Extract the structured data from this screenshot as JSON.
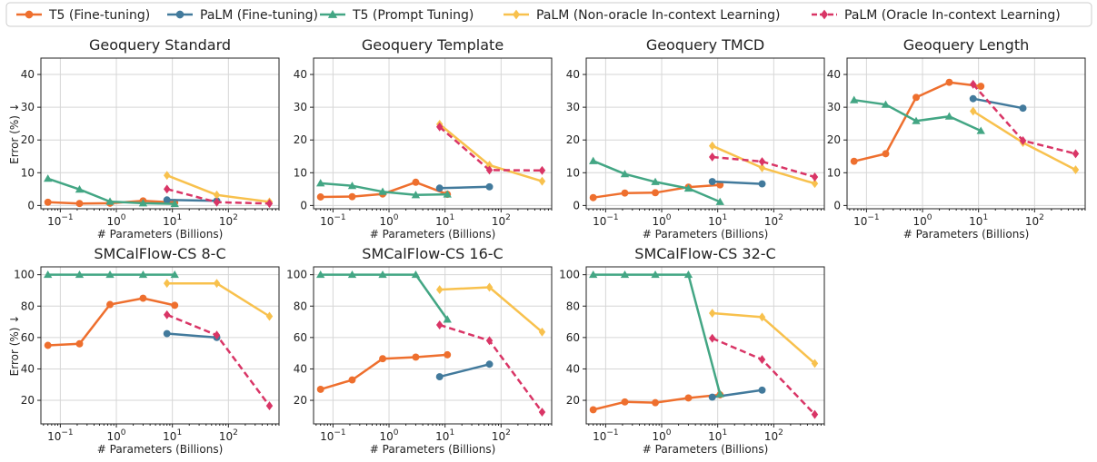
{
  "figure": {
    "legend": [
      {
        "name": "T5 (Fine-tuning)",
        "color": "#ee6f2e",
        "marker": "circle",
        "dashed": false
      },
      {
        "name": "PaLM (Fine-tuning)",
        "color": "#427a9c",
        "marker": "circle",
        "dashed": false
      },
      {
        "name": "T5 (Prompt Tuning)",
        "color": "#43a684",
        "marker": "triangle",
        "dashed": false
      },
      {
        "name": "PaLM (Non-oracle In-context Learning)",
        "color": "#f8c14d",
        "marker": "diamond",
        "dashed": false
      },
      {
        "name": "PaLM (Oracle In-context Learning)",
        "color": "#d93566",
        "marker": "diamond",
        "dashed": true
      }
    ],
    "xlabel": "# Parameters (Billions)",
    "ylabel": "Error (%) ↓",
    "x_ticks": [
      0.1,
      1,
      10,
      100
    ],
    "x_tick_exponents": [
      "−1",
      "0",
      "1",
      "2"
    ],
    "x_tick_base": "10"
  },
  "chart_data": [
    {
      "type": "line",
      "title": "Geoquery Standard",
      "xscale": "log",
      "xlim": [
        0.045,
        800
      ],
      "ylim": [
        -1,
        45
      ],
      "yticks": [
        0,
        10,
        20,
        30,
        40
      ],
      "grid": true,
      "series": [
        {
          "name": "T5 (Fine-tuning)",
          "x": [
            0.06,
            0.22,
            0.77,
            3,
            11
          ],
          "y": [
            1.0,
            0.6,
            0.7,
            1.4,
            0.9
          ]
        },
        {
          "name": "PaLM (Fine-tuning)",
          "x": [
            8,
            62
          ],
          "y": [
            1.7,
            1.4
          ]
        },
        {
          "name": "T5 (Prompt Tuning)",
          "x": [
            0.06,
            0.22,
            0.77,
            3,
            11
          ],
          "y": [
            8.2,
            4.9,
            1.2,
            0.7,
            0.5
          ]
        },
        {
          "name": "PaLM (Non-oracle In-context Learning)",
          "x": [
            8,
            62,
            540
          ],
          "y": [
            9.2,
            3.2,
            1.1
          ]
        },
        {
          "name": "PaLM (Oracle In-context Learning)",
          "x": [
            8,
            62,
            540
          ],
          "y": [
            5.0,
            1.0,
            0.6
          ]
        }
      ]
    },
    {
      "type": "line",
      "title": "Geoquery Template",
      "xscale": "log",
      "xlim": [
        0.045,
        800
      ],
      "ylim": [
        -1,
        45
      ],
      "yticks": [
        0,
        10,
        20,
        30,
        40
      ],
      "grid": true,
      "series": [
        {
          "name": "T5 (Fine-tuning)",
          "x": [
            0.06,
            0.22,
            0.77,
            3,
            11
          ],
          "y": [
            2.6,
            2.7,
            3.5,
            7.1,
            3.4
          ]
        },
        {
          "name": "PaLM (Fine-tuning)",
          "x": [
            8,
            62
          ],
          "y": [
            5.3,
            5.7
          ]
        },
        {
          "name": "T5 (Prompt Tuning)",
          "x": [
            0.06,
            0.22,
            0.77,
            3,
            11
          ],
          "y": [
            6.8,
            6.0,
            4.2,
            3.2,
            3.4
          ]
        },
        {
          "name": "PaLM (Non-oracle In-context Learning)",
          "x": [
            8,
            62,
            540
          ],
          "y": [
            24.8,
            12.3,
            7.4
          ]
        },
        {
          "name": "PaLM (Oracle In-context Learning)",
          "x": [
            8,
            62,
            540
          ],
          "y": [
            24.0,
            10.8,
            10.7
          ]
        }
      ]
    },
    {
      "type": "line",
      "title": "Geoquery TMCD",
      "xscale": "log",
      "xlim": [
        0.045,
        800
      ],
      "ylim": [
        -1,
        45
      ],
      "yticks": [
        0,
        10,
        20,
        30,
        40
      ],
      "grid": true,
      "series": [
        {
          "name": "T5 (Fine-tuning)",
          "x": [
            0.06,
            0.22,
            0.77,
            3,
            11
          ],
          "y": [
            2.4,
            3.8,
            3.9,
            5.6,
            6.3
          ]
        },
        {
          "name": "PaLM (Fine-tuning)",
          "x": [
            8,
            62
          ],
          "y": [
            7.3,
            6.6
          ]
        },
        {
          "name": "T5 (Prompt Tuning)",
          "x": [
            0.06,
            0.22,
            0.77,
            3,
            11
          ],
          "y": [
            13.6,
            9.6,
            7.2,
            5.2,
            1.1
          ]
        },
        {
          "name": "PaLM (Non-oracle In-context Learning)",
          "x": [
            8,
            62,
            540
          ],
          "y": [
            18.2,
            11.5,
            6.7
          ]
        },
        {
          "name": "PaLM (Oracle In-context Learning)",
          "x": [
            8,
            62,
            540
          ],
          "y": [
            14.8,
            13.4,
            8.7
          ]
        }
      ]
    },
    {
      "type": "line",
      "title": "Geoquery Length",
      "xscale": "log",
      "xlim": [
        0.045,
        800
      ],
      "ylim": [
        -1,
        45
      ],
      "yticks": [
        0,
        10,
        20,
        30,
        40
      ],
      "grid": true,
      "series": [
        {
          "name": "T5 (Fine-tuning)",
          "x": [
            0.06,
            0.22,
            0.77,
            3,
            11
          ],
          "y": [
            13.5,
            15.8,
            33.0,
            37.6,
            36.4
          ]
        },
        {
          "name": "PaLM (Fine-tuning)",
          "x": [
            8,
            62
          ],
          "y": [
            32.6,
            29.7
          ]
        },
        {
          "name": "T5 (Prompt Tuning)",
          "x": [
            0.06,
            0.22,
            0.77,
            3,
            11
          ],
          "y": [
            32.2,
            30.8,
            25.8,
            27.2,
            22.8
          ]
        },
        {
          "name": "PaLM (Non-oracle In-context Learning)",
          "x": [
            8,
            62,
            540
          ],
          "y": [
            28.8,
            19.2,
            10.9
          ]
        },
        {
          "name": "PaLM (Oracle In-context Learning)",
          "x": [
            8,
            62,
            540
          ],
          "y": [
            37.0,
            19.8,
            15.8
          ]
        }
      ]
    },
    {
      "type": "line",
      "title": "SMCalFlow-CS 8-C",
      "xscale": "log",
      "xlim": [
        0.045,
        800
      ],
      "ylim": [
        5,
        105
      ],
      "yticks": [
        20,
        40,
        60,
        80,
        100
      ],
      "grid": true,
      "series": [
        {
          "name": "T5 (Fine-tuning)",
          "x": [
            0.06,
            0.22,
            0.77,
            3,
            11
          ],
          "y": [
            55.0,
            56.0,
            81.0,
            85.0,
            80.5
          ]
        },
        {
          "name": "PaLM (Fine-tuning)",
          "x": [
            8,
            62
          ],
          "y": [
            62.5,
            60.0
          ]
        },
        {
          "name": "T5 (Prompt Tuning)",
          "x": [
            0.06,
            0.22,
            0.77,
            3,
            11
          ],
          "y": [
            100,
            100,
            100,
            100,
            100
          ]
        },
        {
          "name": "PaLM (Non-oracle In-context Learning)",
          "x": [
            8,
            62,
            540
          ],
          "y": [
            94.5,
            94.5,
            73.5
          ]
        },
        {
          "name": "PaLM (Oracle In-context Learning)",
          "x": [
            8,
            62,
            540
          ],
          "y": [
            74.5,
            61.5,
            16.5
          ]
        }
      ]
    },
    {
      "type": "line",
      "title": "SMCalFlow-CS 16-C",
      "xscale": "log",
      "xlim": [
        0.045,
        800
      ],
      "ylim": [
        5,
        105
      ],
      "yticks": [
        20,
        40,
        60,
        80,
        100
      ],
      "grid": true,
      "series": [
        {
          "name": "T5 (Fine-tuning)",
          "x": [
            0.06,
            0.22,
            0.77,
            3,
            11
          ],
          "y": [
            27.0,
            33.0,
            46.5,
            47.5,
            49.0
          ]
        },
        {
          "name": "PaLM (Fine-tuning)",
          "x": [
            8,
            62
          ],
          "y": [
            35.0,
            43.0
          ]
        },
        {
          "name": "T5 (Prompt Tuning)",
          "x": [
            0.06,
            0.22,
            0.77,
            3,
            11
          ],
          "y": [
            100,
            100,
            100,
            100,
            71.5
          ]
        },
        {
          "name": "PaLM (Non-oracle In-context Learning)",
          "x": [
            8,
            62,
            540
          ],
          "y": [
            90.5,
            92.0,
            63.5
          ]
        },
        {
          "name": "PaLM (Oracle In-context Learning)",
          "x": [
            8,
            62,
            540
          ],
          "y": [
            68.0,
            58.0,
            12.5
          ]
        }
      ]
    },
    {
      "type": "line",
      "title": "SMCalFlow-CS 32-C",
      "xscale": "log",
      "xlim": [
        0.045,
        800
      ],
      "ylim": [
        5,
        105
      ],
      "yticks": [
        20,
        40,
        60,
        80,
        100
      ],
      "grid": true,
      "series": [
        {
          "name": "T5 (Fine-tuning)",
          "x": [
            0.06,
            0.22,
            0.77,
            3,
            11
          ],
          "y": [
            14.0,
            19.0,
            18.5,
            21.5,
            23.5
          ]
        },
        {
          "name": "PaLM (Fine-tuning)",
          "x": [
            8,
            62
          ],
          "y": [
            22.0,
            26.5
          ]
        },
        {
          "name": "T5 (Prompt Tuning)",
          "x": [
            0.06,
            0.22,
            0.77,
            3,
            11
          ],
          "y": [
            100,
            100,
            100,
            100,
            24.0
          ]
        },
        {
          "name": "PaLM (Non-oracle In-context Learning)",
          "x": [
            8,
            62,
            540
          ],
          "y": [
            75.5,
            73.0,
            43.5
          ]
        },
        {
          "name": "PaLM (Oracle In-context Learning)",
          "x": [
            8,
            62,
            540
          ],
          "y": [
            59.5,
            46.0,
            11.0
          ]
        }
      ]
    }
  ]
}
